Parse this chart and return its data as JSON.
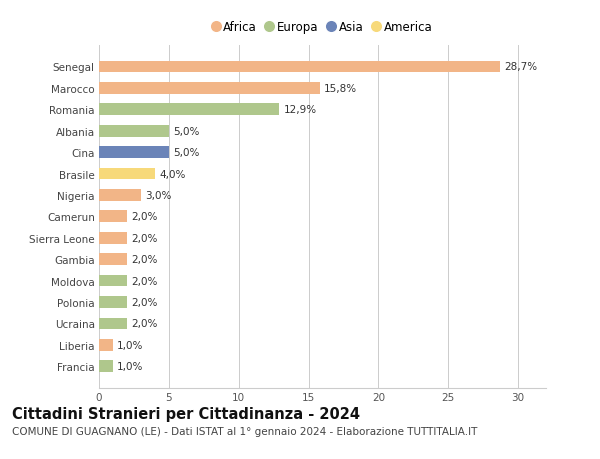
{
  "countries": [
    "Senegal",
    "Marocco",
    "Romania",
    "Albania",
    "Cina",
    "Brasile",
    "Nigeria",
    "Camerun",
    "Sierra Leone",
    "Gambia",
    "Moldova",
    "Polonia",
    "Ucraina",
    "Liberia",
    "Francia"
  ],
  "values": [
    28.7,
    15.8,
    12.9,
    5.0,
    5.0,
    4.0,
    3.0,
    2.0,
    2.0,
    2.0,
    2.0,
    2.0,
    2.0,
    1.0,
    1.0
  ],
  "labels": [
    "28,7%",
    "15,8%",
    "12,9%",
    "5,0%",
    "5,0%",
    "4,0%",
    "3,0%",
    "2,0%",
    "2,0%",
    "2,0%",
    "2,0%",
    "2,0%",
    "2,0%",
    "1,0%",
    "1,0%"
  ],
  "colors": [
    "#F2B587",
    "#F2B587",
    "#AFC78C",
    "#AFC78C",
    "#6B84B8",
    "#F7D97A",
    "#F2B587",
    "#F2B587",
    "#F2B587",
    "#F2B587",
    "#AFC78C",
    "#AFC78C",
    "#AFC78C",
    "#F2B587",
    "#AFC78C"
  ],
  "legend": [
    {
      "label": "Africa",
      "color": "#F2B587"
    },
    {
      "label": "Europa",
      "color": "#AFC78C"
    },
    {
      "label": "Asia",
      "color": "#6B84B8"
    },
    {
      "label": "America",
      "color": "#F7D97A"
    }
  ],
  "title": "Cittadini Stranieri per Cittadinanza - 2024",
  "subtitle": "COMUNE DI GUAGNANO (LE) - Dati ISTAT al 1° gennaio 2024 - Elaborazione TUTTITALIA.IT",
  "xlim": [
    0,
    32
  ],
  "xticks": [
    0,
    5,
    10,
    15,
    20,
    25,
    30
  ],
  "bg_color": "#ffffff",
  "grid_color": "#cccccc",
  "title_fontsize": 10.5,
  "subtitle_fontsize": 7.5,
  "label_fontsize": 7.5,
  "tick_fontsize": 7.5,
  "bar_height": 0.55
}
